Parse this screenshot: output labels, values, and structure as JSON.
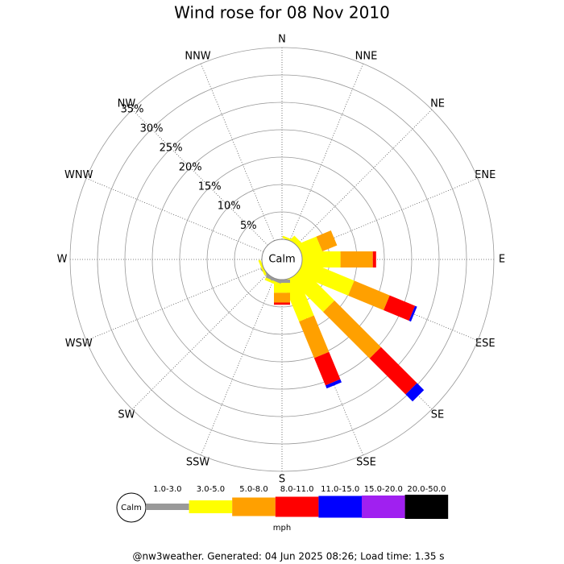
{
  "chart_data": {
    "type": "windrose",
    "title": "Wind rose for 08 Nov 2010",
    "categories": [
      "N",
      "NNE",
      "NE",
      "ENE",
      "E",
      "ESE",
      "SE",
      "SSE",
      "S",
      "SSW",
      "SW",
      "WSW",
      "W",
      "WNW",
      "NW",
      "NNW"
    ],
    "series": [
      {
        "name": "1.0-3.0",
        "color": "#999999",
        "values": [
          0,
          0,
          0,
          0,
          0,
          0,
          0,
          0,
          0.6,
          0.5,
          0.4,
          0,
          0,
          0,
          0,
          0
        ]
      },
      {
        "name": "3.0-5.0",
        "color": "#ffff00",
        "values": [
          0,
          0.4,
          1.0,
          3.7,
          7,
          10,
          8.4,
          8,
          1.8,
          0.5,
          0,
          0.4,
          0,
          0,
          0,
          0
        ]
      },
      {
        "name": "5.0-8.0",
        "color": "#ffa000",
        "values": [
          0,
          0,
          0,
          2.9,
          5.9,
          7,
          12,
          7.2,
          1.8,
          0,
          0,
          0,
          0,
          0,
          0,
          0
        ]
      },
      {
        "name": "8.0-11.0",
        "color": "#ff0000",
        "values": [
          0,
          0,
          0,
          0,
          0.6,
          5,
          9.3,
          5.4,
          0.4,
          0,
          0,
          0,
          0,
          0,
          0,
          0
        ]
      },
      {
        "name": "11.0-15.0",
        "color": "#0000ff",
        "values": [
          0,
          0,
          0,
          0,
          0,
          0.4,
          1.8,
          0.6,
          0,
          0,
          0,
          0,
          0,
          0,
          0,
          0
        ]
      },
      {
        "name": "15.0-20.0",
        "color": "#a020f0",
        "values": [
          0,
          0,
          0,
          0,
          0,
          0,
          0,
          0,
          0,
          0,
          0,
          0,
          0,
          0,
          0,
          0
        ]
      },
      {
        "name": "20.0-50.0",
        "color": "#000000",
        "values": [
          0,
          0,
          0,
          0,
          0,
          0,
          0,
          0,
          0,
          0,
          0,
          0,
          0,
          0,
          0,
          0
        ]
      }
    ],
    "rlim": [
      0,
      35
    ],
    "rticks": [
      {
        "value": 5,
        "label": "5%"
      },
      {
        "value": 10,
        "label": "10%"
      },
      {
        "value": 15,
        "label": "15%"
      },
      {
        "value": 20,
        "label": "20%"
      },
      {
        "value": 25,
        "label": "25%"
      },
      {
        "value": 30,
        "label": "30%"
      },
      {
        "value": 35,
        "label": "35%"
      }
    ],
    "calm_label": "Calm",
    "unit_label": "mph",
    "footer": "@nw3weather. Generated: 04 Jun 2025 08:26; Load time: 1.35 s"
  }
}
